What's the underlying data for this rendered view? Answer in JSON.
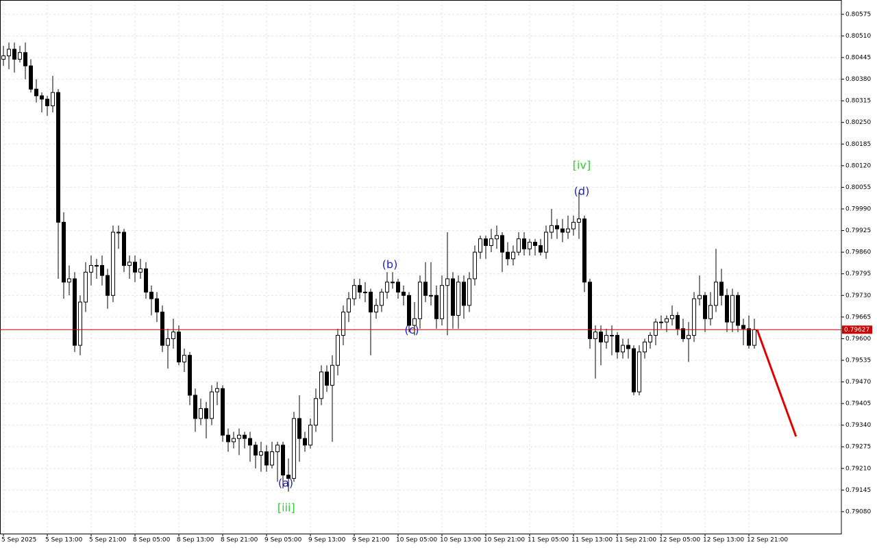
{
  "chart_data": {
    "type": "candlestick",
    "categories": [
      "5 Sep 2025",
      null,
      null,
      null,
      null,
      null,
      null,
      null,
      "5 Sep 13:00",
      null,
      null,
      null,
      null,
      null,
      null,
      null,
      "5 Sep 21:00",
      null,
      null,
      null,
      null,
      null,
      null,
      null,
      "8 Sep 05:00",
      null,
      null,
      null,
      null,
      null,
      null,
      null,
      "8 Sep 13:00",
      null,
      null,
      null,
      null,
      null,
      null,
      null,
      "8 Sep 21:00",
      null,
      null,
      null,
      null,
      null,
      null,
      null,
      "9 Sep 05:00",
      null,
      null,
      null,
      null,
      null,
      null,
      null,
      "9 Sep 13:00",
      null,
      null,
      null,
      null,
      null,
      null,
      null,
      "9 Sep 21:00",
      null,
      null,
      null,
      null,
      null,
      null,
      null,
      "10 Sep 05:00",
      null,
      null,
      null,
      null,
      null,
      null,
      null,
      "10 Sep 13:00",
      null,
      null,
      null,
      null,
      null,
      null,
      null,
      "10 Sep 21:00",
      null,
      null,
      null,
      null,
      null,
      null,
      null,
      "11 Sep 05:00",
      null,
      null,
      null,
      null,
      null,
      null,
      null,
      "11 Sep 13:00",
      null,
      null,
      null,
      null,
      null,
      null,
      null,
      "11 Sep 21:00",
      null,
      null,
      null,
      null,
      null,
      null,
      null,
      "12 Sep 05:00",
      null,
      null,
      null,
      null,
      null,
      null,
      null,
      "12 Sep 13:00",
      null,
      null,
      null,
      null,
      null,
      null,
      null,
      "12 Sep 21:00",
      null
    ],
    "ohlc": [
      [
        0.8044,
        0.8048,
        0.8042,
        0.8045
      ],
      [
        0.8045,
        0.8049,
        0.8041,
        0.8047
      ],
      [
        0.8047,
        0.8049,
        0.804,
        0.8044
      ],
      [
        0.8044,
        0.8048,
        0.8043,
        0.8046
      ],
      [
        0.8046,
        0.8049,
        0.8038,
        0.8042
      ],
      [
        0.8042,
        0.8044,
        0.8034,
        0.8035
      ],
      [
        0.8035,
        0.8038,
        0.8031,
        0.8033
      ],
      [
        0.8033,
        0.8034,
        0.8028,
        0.8032
      ],
      [
        0.8032,
        0.8033,
        0.8027,
        0.803
      ],
      [
        0.803,
        0.8039,
        0.8028,
        0.8034
      ],
      [
        0.8034,
        0.8035,
        0.7978,
        0.7995
      ],
      [
        0.7995,
        0.7998,
        0.7972,
        0.7977
      ],
      [
        0.7977,
        0.7982,
        0.7973,
        0.7978
      ],
      [
        0.7978,
        0.798,
        0.7956,
        0.7958
      ],
      [
        0.7958,
        0.7973,
        0.7955,
        0.7971
      ],
      [
        0.7971,
        0.7983,
        0.7968,
        0.798
      ],
      [
        0.798,
        0.7985,
        0.7976,
        0.7982
      ],
      [
        0.7982,
        0.7984,
        0.7978,
        0.7982
      ],
      [
        0.7982,
        0.7985,
        0.7976,
        0.7979
      ],
      [
        0.7979,
        0.7981,
        0.7969,
        0.7973
      ],
      [
        0.7973,
        0.7994,
        0.7971,
        0.7992
      ],
      [
        0.7992,
        0.7994,
        0.7987,
        0.7992
      ],
      [
        0.7992,
        0.7993,
        0.798,
        0.7982
      ],
      [
        0.7982,
        0.7985,
        0.7978,
        0.7983
      ],
      [
        0.7983,
        0.7985,
        0.7977,
        0.798
      ],
      [
        0.798,
        0.7984,
        0.7978,
        0.7981
      ],
      [
        0.7981,
        0.7983,
        0.7972,
        0.7974
      ],
      [
        0.7974,
        0.7976,
        0.7967,
        0.7972
      ],
      [
        0.7972,
        0.7974,
        0.7965,
        0.7968
      ],
      [
        0.7968,
        0.797,
        0.7956,
        0.7958
      ],
      [
        0.7958,
        0.7963,
        0.7951,
        0.796
      ],
      [
        0.796,
        0.7966,
        0.7957,
        0.7962
      ],
      [
        0.7962,
        0.7964,
        0.7952,
        0.7953
      ],
      [
        0.7953,
        0.7957,
        0.795,
        0.7955
      ],
      [
        0.7955,
        0.7956,
        0.794,
        0.7943
      ],
      [
        0.7943,
        0.7945,
        0.7932,
        0.7936
      ],
      [
        0.7936,
        0.7942,
        0.7934,
        0.7939
      ],
      [
        0.7939,
        0.7941,
        0.793,
        0.7936
      ],
      [
        0.7936,
        0.7946,
        0.7934,
        0.7944
      ],
      [
        0.7944,
        0.7947,
        0.794,
        0.7945
      ],
      [
        0.7945,
        0.7946,
        0.7929,
        0.7931
      ],
      [
        0.7931,
        0.7933,
        0.7926,
        0.7929
      ],
      [
        0.7929,
        0.7932,
        0.7927,
        0.793
      ],
      [
        0.793,
        0.7933,
        0.7925,
        0.7931
      ],
      [
        0.7931,
        0.7932,
        0.7927,
        0.793
      ],
      [
        0.793,
        0.7932,
        0.7923,
        0.7928
      ],
      [
        0.7928,
        0.7929,
        0.7921,
        0.7925
      ],
      [
        0.7925,
        0.7929,
        0.792,
        0.7926
      ],
      [
        0.7926,
        0.7928,
        0.792,
        0.7922
      ],
      [
        0.7922,
        0.7929,
        0.7921,
        0.7926
      ],
      [
        0.7926,
        0.7929,
        0.7917,
        0.7928
      ],
      [
        0.7928,
        0.7929,
        0.7915,
        0.7919
      ],
      [
        0.7919,
        0.7924,
        0.7914,
        0.7918
      ],
      [
        0.7918,
        0.7938,
        0.7917,
        0.7936
      ],
      [
        0.7936,
        0.7943,
        0.7923,
        0.793
      ],
      [
        0.793,
        0.7932,
        0.7926,
        0.7928
      ],
      [
        0.7928,
        0.7936,
        0.7927,
        0.7934
      ],
      [
        0.7934,
        0.7945,
        0.7932,
        0.7942
      ],
      [
        0.7942,
        0.7952,
        0.794,
        0.795
      ],
      [
        0.795,
        0.7952,
        0.7944,
        0.7946
      ],
      [
        0.7946,
        0.7955,
        0.7929,
        0.7952
      ],
      [
        0.7952,
        0.7963,
        0.7949,
        0.7961
      ],
      [
        0.7961,
        0.797,
        0.7958,
        0.7968
      ],
      [
        0.7968,
        0.7974,
        0.7965,
        0.7972
      ],
      [
        0.7972,
        0.7978,
        0.797,
        0.7976
      ],
      [
        0.7976,
        0.7978,
        0.7972,
        0.7974
      ],
      [
        0.7974,
        0.7977,
        0.7971,
        0.7974
      ],
      [
        0.7974,
        0.7975,
        0.7955,
        0.7968
      ],
      [
        0.7968,
        0.7972,
        0.7966,
        0.797
      ],
      [
        0.797,
        0.7975,
        0.7968,
        0.7974
      ],
      [
        0.7974,
        0.798,
        0.7972,
        0.7977
      ],
      [
        0.7977,
        0.798,
        0.7975,
        0.7977
      ],
      [
        0.7977,
        0.7978,
        0.7972,
        0.7974
      ],
      [
        0.7974,
        0.7976,
        0.797,
        0.7973
      ],
      [
        0.7973,
        0.7974,
        0.7962,
        0.7964
      ],
      [
        0.7964,
        0.7971,
        0.7961,
        0.7966
      ],
      [
        0.7966,
        0.7979,
        0.7963,
        0.7977
      ],
      [
        0.7977,
        0.7983,
        0.7971,
        0.7973
      ],
      [
        0.7973,
        0.7983,
        0.797,
        0.7973
      ],
      [
        0.7973,
        0.7976,
        0.7963,
        0.7966
      ],
      [
        0.7966,
        0.7979,
        0.7964,
        0.7976
      ],
      [
        0.7976,
        0.7992,
        0.7961,
        0.7978
      ],
      [
        0.7978,
        0.798,
        0.7963,
        0.7967
      ],
      [
        0.7967,
        0.7979,
        0.7963,
        0.7977
      ],
      [
        0.7977,
        0.7979,
        0.7966,
        0.797
      ],
      [
        0.797,
        0.798,
        0.7968,
        0.7978
      ],
      [
        0.7978,
        0.7988,
        0.7976,
        0.7986
      ],
      [
        0.7986,
        0.7991,
        0.7984,
        0.799
      ],
      [
        0.799,
        0.7991,
        0.7984,
        0.7988
      ],
      [
        0.7988,
        0.7993,
        0.7986,
        0.799
      ],
      [
        0.799,
        0.7994,
        0.7987,
        0.7991
      ],
      [
        0.7991,
        0.7992,
        0.798,
        0.7986
      ],
      [
        0.7986,
        0.7989,
        0.7982,
        0.7984
      ],
      [
        0.7984,
        0.7988,
        0.7982,
        0.7986
      ],
      [
        0.7986,
        0.7992,
        0.7985,
        0.799
      ],
      [
        0.799,
        0.7992,
        0.7985,
        0.7987
      ],
      [
        0.7987,
        0.799,
        0.7985,
        0.7989
      ],
      [
        0.7989,
        0.799,
        0.7985,
        0.7988
      ],
      [
        0.7988,
        0.799,
        0.7985,
        0.7986
      ],
      [
        0.7986,
        0.7994,
        0.7984,
        0.7992
      ],
      [
        0.7992,
        0.7999,
        0.799,
        0.7994
      ],
      [
        0.7994,
        0.7996,
        0.799,
        0.7993
      ],
      [
        0.7993,
        0.7996,
        0.7989,
        0.7992
      ],
      [
        0.7992,
        0.7997,
        0.799,
        0.7993
      ],
      [
        0.7993,
        0.7997,
        0.7991,
        0.7995
      ],
      [
        0.7995,
        0.8004,
        0.799,
        0.7996
      ],
      [
        0.7996,
        0.7997,
        0.7974,
        0.7977
      ],
      [
        0.7977,
        0.7978,
        0.7957,
        0.796
      ],
      [
        0.796,
        0.7964,
        0.7948,
        0.7962
      ],
      [
        0.7962,
        0.7964,
        0.7952,
        0.7959
      ],
      [
        0.7959,
        0.7963,
        0.7957,
        0.7961
      ],
      [
        0.7961,
        0.7964,
        0.7955,
        0.7961
      ],
      [
        0.7961,
        0.7962,
        0.7954,
        0.7956
      ],
      [
        0.7956,
        0.796,
        0.7954,
        0.7958
      ],
      [
        0.7958,
        0.796,
        0.7954,
        0.7957
      ],
      [
        0.7957,
        0.7958,
        0.7943,
        0.7944
      ],
      [
        0.7944,
        0.7958,
        0.7943,
        0.7956
      ],
      [
        0.7956,
        0.796,
        0.7954,
        0.7959
      ],
      [
        0.7959,
        0.7962,
        0.7957,
        0.7961
      ],
      [
        0.7961,
        0.7966,
        0.7958,
        0.7965
      ],
      [
        0.7965,
        0.7967,
        0.7963,
        0.7965
      ],
      [
        0.7965,
        0.7967,
        0.7962,
        0.7966
      ],
      [
        0.7966,
        0.797,
        0.7964,
        0.7967
      ],
      [
        0.7967,
        0.7968,
        0.7961,
        0.7963
      ],
      [
        0.7963,
        0.7966,
        0.7959,
        0.796
      ],
      [
        0.796,
        0.7965,
        0.7953,
        0.7961
      ],
      [
        0.7961,
        0.7974,
        0.7959,
        0.7972
      ],
      [
        0.7972,
        0.7979,
        0.797,
        0.7973
      ],
      [
        0.7973,
        0.7974,
        0.7962,
        0.7966
      ],
      [
        0.7966,
        0.7974,
        0.7964,
        0.797
      ],
      [
        0.797,
        0.7987,
        0.7968,
        0.7977
      ],
      [
        0.7977,
        0.7981,
        0.797,
        0.7973
      ],
      [
        0.7973,
        0.7975,
        0.7962,
        0.7965
      ],
      [
        0.7965,
        0.7975,
        0.7962,
        0.7973
      ],
      [
        0.7973,
        0.7974,
        0.7962,
        0.7964
      ],
      [
        0.7964,
        0.7966,
        0.7958,
        0.7963
      ],
      [
        0.7963,
        0.7967,
        0.7957,
        0.7958
      ],
      [
        0.7958,
        0.7966,
        0.7957,
        0.79627
      ]
    ],
    "ylim": [
      0.79014,
      0.80618
    ],
    "yticks": [
      0.80575,
      {
        "value": 0.8051,
        "label": "0.80510"
      },
      0.80445,
      {
        "value": 0.8038,
        "label": "0.80380"
      },
      0.80315,
      {
        "value": 0.8025,
        "label": "0.80250"
      },
      0.80185,
      {
        "value": 0.8012,
        "label": "0.80120"
      },
      0.80055,
      {
        "value": 0.7999,
        "label": "0.79990"
      },
      0.79925,
      {
        "value": 0.7986,
        "label": "0.79860"
      },
      0.79795,
      {
        "value": 0.7973,
        "label": "0.79730"
      },
      0.79665,
      {
        "value": 0.796,
        "label": "0.79600"
      },
      0.79535,
      {
        "value": 0.7947,
        "label": "0.79470"
      },
      0.79405,
      {
        "value": 0.7934,
        "label": "0.79340"
      },
      0.79275,
      {
        "value": 0.7921,
        "label": "0.79210"
      },
      0.79145,
      {
        "value": 0.7908,
        "label": "0.79080"
      }
    ],
    "grid": true,
    "price_line": {
      "value": 0.79627,
      "color": "#cc0000"
    },
    "forecast": {
      "x": [
        137.5,
        144.6
      ],
      "y": [
        0.79627,
        0.79306
      ],
      "color": "#e00000"
    },
    "annotations": [
      {
        "text": "[iv]",
        "x": 105.5,
        "y": 0.8012,
        "color": "#33cc33"
      },
      {
        "text": "(d)",
        "x": 105.5,
        "y": 0.80041,
        "color": "#2222cc"
      },
      {
        "text": "(b)",
        "x": 70.5,
        "y": 0.79821,
        "color": "#2222cc"
      },
      {
        "text": "(c)",
        "x": 74.5,
        "y": 0.79625,
        "color": "#2222cc"
      },
      {
        "text": "(a)",
        "x": 51.5,
        "y": 0.79164,
        "color": "#2222cc"
      },
      {
        "text": "[iii]",
        "x": 51.6,
        "y": 0.7909,
        "color": "#33cc33"
      }
    ]
  }
}
